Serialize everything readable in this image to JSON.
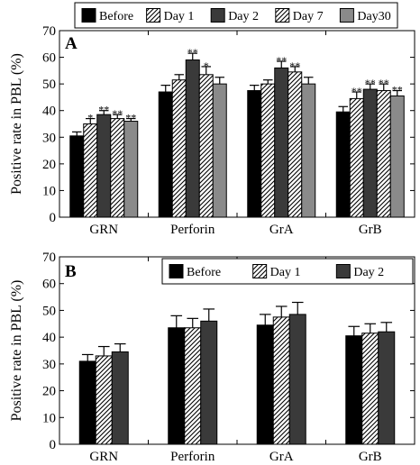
{
  "chart_data": [
    {
      "type": "bar",
      "panel_label": "A",
      "ylabel": "Positive rate in PBL (%)",
      "xlabel": "",
      "ylim": [
        0,
        70
      ],
      "yticks": [
        0,
        10,
        20,
        30,
        40,
        50,
        60,
        70
      ],
      "ytick_labels": [
        "0",
        "10",
        "20",
        "30",
        "40",
        "50",
        "60",
        "70"
      ],
      "legend_position": "top-center-outside",
      "categories": [
        "GRN",
        "Perforin",
        "GrA",
        "GrB"
      ],
      "series": [
        {
          "name": "Before",
          "fill": "solid",
          "color": "#000000",
          "values": [
            30.5,
            47,
            47.5,
            39.5
          ],
          "errors": [
            1.5,
            2.5,
            2,
            2
          ],
          "sig": [
            "",
            "",
            "",
            ""
          ]
        },
        {
          "name": "Day 1",
          "fill": "hatch",
          "color": "#ffffff",
          "values": [
            35,
            51.5,
            50,
            44.5
          ],
          "errors": [
            2,
            2,
            1.5,
            2.5
          ],
          "sig": [
            "*",
            "",
            "",
            "**"
          ]
        },
        {
          "name": "Day 2",
          "fill": "solid",
          "color": "#3a3a3a",
          "values": [
            38.5,
            59,
            56,
            48
          ],
          "errors": [
            1.5,
            2.5,
            2.5,
            2
          ],
          "sig": [
            "**",
            "**",
            "**",
            "**"
          ]
        },
        {
          "name": "Day 7",
          "fill": "hatch",
          "color": "#ffffff",
          "values": [
            37,
            53.5,
            54.5,
            47.5
          ],
          "errors": [
            1.5,
            3,
            2,
            2.5
          ],
          "sig": [
            "**",
            "*",
            "**",
            "**"
          ]
        },
        {
          "name": "Day30",
          "fill": "solid",
          "color": "#8a8a8a",
          "values": [
            36,
            50,
            50,
            45.5
          ],
          "errors": [
            1,
            2.5,
            2.5,
            2
          ],
          "sig": [
            "**",
            "",
            "",
            "**"
          ]
        }
      ]
    },
    {
      "type": "bar",
      "panel_label": "B",
      "ylabel": "Positive rate in PBL (%)",
      "xlabel": "",
      "ylim": [
        0,
        70
      ],
      "yticks": [
        0,
        10,
        20,
        30,
        40,
        50,
        60,
        70
      ],
      "ytick_labels": [
        "0",
        "10",
        "20",
        "30",
        "40",
        "50",
        "60",
        "70"
      ],
      "legend_position": "top-right-inside",
      "categories": [
        "GRN",
        "Perforin",
        "GrA",
        "GrB"
      ],
      "series": [
        {
          "name": "Before",
          "fill": "solid",
          "color": "#000000",
          "values": [
            31,
            43.5,
            44.5,
            40.5
          ],
          "errors": [
            2.5,
            4.5,
            4,
            3.5
          ],
          "sig": [
            "",
            "",
            "",
            ""
          ]
        },
        {
          "name": "Day 1",
          "fill": "hatch",
          "color": "#ffffff",
          "values": [
            33,
            43.5,
            47.5,
            41.5
          ],
          "errors": [
            3.5,
            3.5,
            4,
            3.5
          ],
          "sig": [
            "",
            "",
            "",
            ""
          ]
        },
        {
          "name": "Day 2",
          "fill": "solid",
          "color": "#3a3a3a",
          "values": [
            34.5,
            46,
            48.5,
            42
          ],
          "errors": [
            3,
            4.5,
            4.5,
            3.5
          ],
          "sig": [
            "",
            "",
            "",
            ""
          ]
        }
      ]
    }
  ]
}
